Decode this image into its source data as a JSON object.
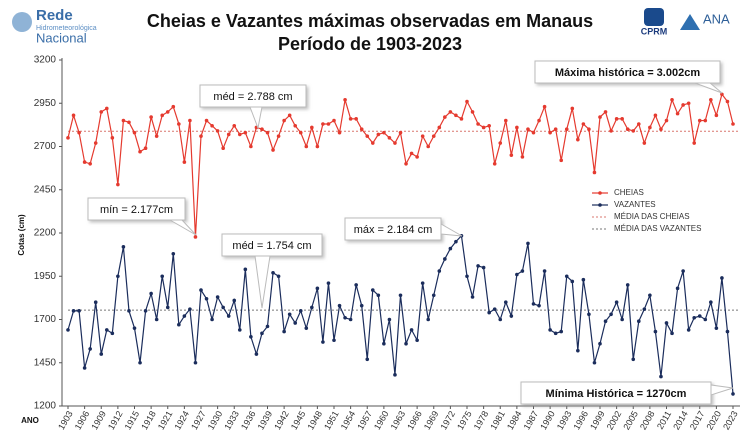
{
  "logos": {
    "rede": [
      "Rede",
      "Hidrometeorológica",
      "Nacional"
    ],
    "cprm": "CPRM",
    "ana": "ANA"
  },
  "chart_data": {
    "type": "line",
    "title": "Cheias e Vazantes máximas observadas em Manaus",
    "subtitle": "Período de 1903-2023",
    "y_label": "Cotas (cm)",
    "x_label": "ANO",
    "x": [
      1903,
      1904,
      1905,
      1906,
      1907,
      1908,
      1909,
      1910,
      1911,
      1912,
      1913,
      1914,
      1915,
      1916,
      1917,
      1918,
      1919,
      1920,
      1921,
      1922,
      1923,
      1924,
      1925,
      1926,
      1927,
      1928,
      1929,
      1930,
      1931,
      1932,
      1933,
      1934,
      1935,
      1936,
      1937,
      1938,
      1939,
      1940,
      1941,
      1942,
      1943,
      1944,
      1945,
      1946,
      1947,
      1948,
      1949,
      1950,
      1951,
      1952,
      1953,
      1954,
      1955,
      1956,
      1957,
      1958,
      1959,
      1960,
      1961,
      1962,
      1963,
      1964,
      1965,
      1966,
      1967,
      1968,
      1969,
      1970,
      1971,
      1972,
      1973,
      1974,
      1975,
      1976,
      1977,
      1978,
      1979,
      1980,
      1981,
      1982,
      1983,
      1984,
      1985,
      1986,
      1987,
      1988,
      1989,
      1990,
      1991,
      1992,
      1993,
      1994,
      1995,
      1996,
      1997,
      1998,
      1999,
      2000,
      2001,
      2002,
      2003,
      2004,
      2005,
      2006,
      2007,
      2008,
      2009,
      2010,
      2011,
      2012,
      2013,
      2014,
      2015,
      2016,
      2017,
      2018,
      2019,
      2020,
      2021,
      2022,
      2023
    ],
    "series": [
      {
        "name": "CHEIAS",
        "color": "#e53a2f",
        "values": [
          2750,
          2880,
          2780,
          2610,
          2600,
          2720,
          2900,
          2920,
          2750,
          2480,
          2850,
          2840,
          2780,
          2670,
          2690,
          2870,
          2760,
          2880,
          2900,
          2930,
          2830,
          2610,
          2850,
          2177,
          2760,
          2850,
          2820,
          2790,
          2690,
          2770,
          2820,
          2770,
          2780,
          2700,
          2810,
          2800,
          2780,
          2680,
          2760,
          2850,
          2880,
          2820,
          2780,
          2700,
          2810,
          2700,
          2830,
          2830,
          2850,
          2780,
          2970,
          2860,
          2860,
          2800,
          2760,
          2720,
          2770,
          2780,
          2750,
          2720,
          2780,
          2600,
          2660,
          2640,
          2760,
          2700,
          2760,
          2810,
          2870,
          2900,
          2880,
          2860,
          2960,
          2900,
          2830,
          2810,
          2820,
          2600,
          2720,
          2850,
          2650,
          2810,
          2640,
          2800,
          2780,
          2850,
          2930,
          2780,
          2800,
          2620,
          2800,
          2920,
          2740,
          2830,
          2800,
          2550,
          2870,
          2900,
          2790,
          2860,
          2860,
          2800,
          2790,
          2830,
          2720,
          2810,
          2880,
          2800,
          2850,
          2970,
          2890,
          2940,
          2950,
          2720,
          2850,
          2850,
          2970,
          2880,
          3002,
          2960,
          2830
        ]
      },
      {
        "name": "VAZANTES",
        "color": "#1b2d5c",
        "values": [
          1640,
          1750,
          1750,
          1420,
          1530,
          1800,
          1500,
          1640,
          1620,
          1950,
          2120,
          1750,
          1650,
          1450,
          1750,
          1850,
          1700,
          1950,
          1770,
          2080,
          1670,
          1720,
          1760,
          1450,
          1870,
          1820,
          1700,
          1830,
          1770,
          1720,
          1810,
          1640,
          1990,
          1600,
          1500,
          1620,
          1660,
          1970,
          1950,
          1630,
          1730,
          1680,
          1750,
          1650,
          1770,
          1880,
          1570,
          1910,
          1580,
          1780,
          1710,
          1700,
          1900,
          1780,
          1470,
          1870,
          1840,
          1560,
          1700,
          1380,
          1840,
          1560,
          1640,
          1580,
          1910,
          1700,
          1840,
          1980,
          2050,
          2110,
          2150,
          2184,
          1950,
          1830,
          2010,
          2000,
          1740,
          1760,
          1700,
          1800,
          1720,
          1960,
          1980,
          2140,
          1790,
          1780,
          1980,
          1640,
          1620,
          1630,
          1950,
          1920,
          1520,
          1930,
          1730,
          1450,
          1560,
          1690,
          1730,
          1800,
          1700,
          1900,
          1470,
          1690,
          1760,
          1840,
          1630,
          1370,
          1680,
          1620,
          1880,
          1980,
          1640,
          1710,
          1720,
          1700,
          1800,
          1650,
          1940,
          1630,
          1270
        ]
      }
    ],
    "reference_lines": [
      {
        "name": "MÉDIA DAS CHEIAS",
        "value": 2788,
        "color": "#d9776f"
      },
      {
        "name": "MÉDIA DAS VAZANTES",
        "value": 1754,
        "color": "#777777"
      }
    ],
    "annotations": [
      "méd = 2.788 cm",
      "Máxima histórica = 3.002cm",
      "mín = 2.177cm",
      "méd = 1.754 cm",
      "máx = 2.184 cm",
      "Mínima Histórica = 1270cm"
    ],
    "xlim": [
      1903,
      2023
    ],
    "xticks": [
      1903,
      1906,
      1909,
      1912,
      1915,
      1918,
      1921,
      1924,
      1927,
      1930,
      1933,
      1936,
      1939,
      1942,
      1945,
      1948,
      1951,
      1954,
      1957,
      1960,
      1963,
      1966,
      1969,
      1972,
      1975,
      1978,
      1981,
      1984,
      1987,
      1990,
      1993,
      1996,
      1999,
      2002,
      2005,
      2008,
      2011,
      2014,
      2017,
      2020,
      2023
    ],
    "ylim": [
      1200,
      3200
    ],
    "yticks": [
      1200,
      1450,
      1700,
      1950,
      2200,
      2450,
      2700,
      2950,
      3200
    ],
    "grid": false,
    "legend": "right"
  }
}
